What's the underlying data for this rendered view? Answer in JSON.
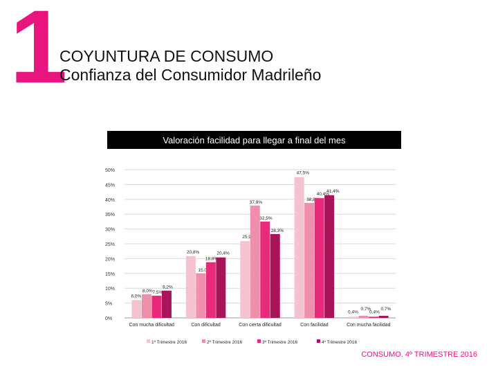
{
  "header": {
    "number": "1",
    "title": "COYUNTURA DE CONSUMO",
    "subtitle": "Confianza del Consumidor Madrileño"
  },
  "footer": "CONSUMO. 4º TRIMESTRE 2016",
  "colors": {
    "accent": "#e8157f",
    "series": [
      "#f5c3cf",
      "#f08fab",
      "#e92a7b",
      "#a8135a"
    ]
  },
  "chart_data": {
    "type": "bar",
    "title": "Valoración facilidad para llegar a final del mes",
    "categories": [
      "Con mucha dificultad",
      "Con dificultad",
      "Con cierta dificultad",
      "Con facilidad",
      "Con mucha facilidad"
    ],
    "series": [
      {
        "name": "1º Trimestre 2016",
        "values": [
          6.0,
          20.8,
          25.9,
          47.5,
          0.4
        ],
        "labels": [
          "6,0%",
          "20,8%",
          "25,9%",
          "47,5%",
          "0,4%"
        ]
      },
      {
        "name": "2º Trimestre 2016",
        "values": [
          8.0,
          15.0,
          37.9,
          38.8,
          0.7
        ],
        "labels": [
          "8,0%",
          "15,0%",
          "37,9%",
          "38,8%",
          "0,7%"
        ]
      },
      {
        "name": "3º Trimestre 2016",
        "values": [
          7.5,
          18.8,
          32.5,
          40.4,
          0.4
        ],
        "labels": [
          "7,5%",
          "18,8%",
          "32,5%",
          "40,4%",
          "0,4%"
        ]
      },
      {
        "name": "4º Trimestre 2016",
        "values": [
          9.2,
          20.4,
          28.3,
          41.4,
          0.7
        ],
        "labels": [
          "9,2%",
          "20,4%",
          "28,3%",
          "41,4%",
          "0,7%"
        ]
      }
    ],
    "yticks": [
      "0%",
      "5%",
      "10%",
      "15%",
      "20%",
      "25%",
      "30%",
      "35%",
      "40%",
      "45%",
      "50%"
    ],
    "ylim": [
      0,
      50
    ],
    "grid": true,
    "legend": "bottom"
  }
}
